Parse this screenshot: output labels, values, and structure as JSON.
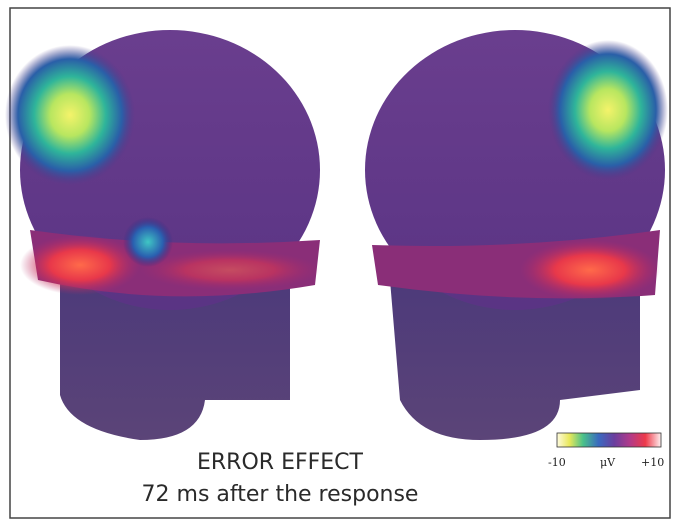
{
  "figure": {
    "title": "ERROR EFFECT",
    "subtitle": "72 ms after the response",
    "colorbar": {
      "min_label": "-10",
      "unit_label": "μV",
      "max_label": "+10"
    }
  }
}
